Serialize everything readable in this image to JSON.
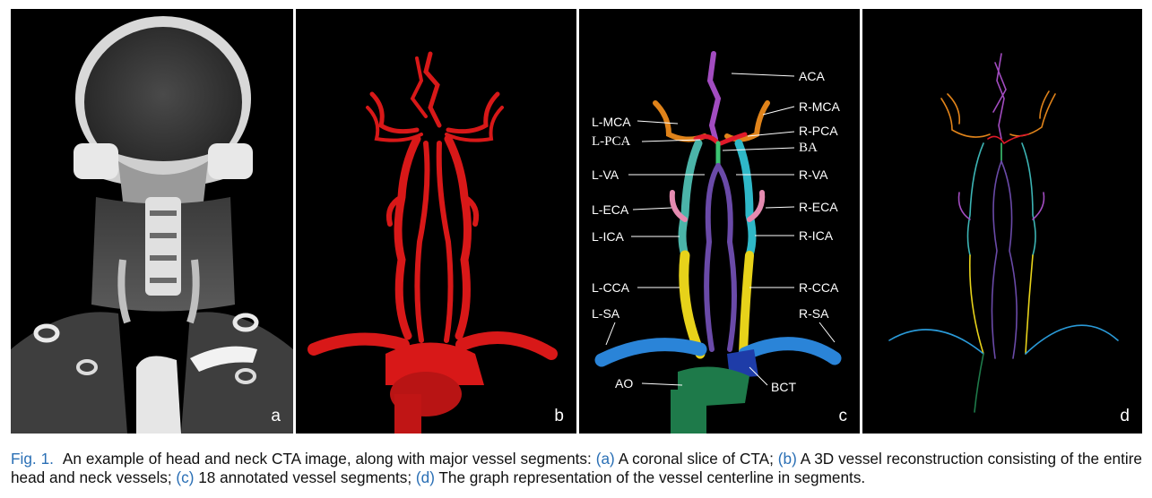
{
  "figure": {
    "panels": [
      {
        "id": "a",
        "letter": "a"
      },
      {
        "id": "b",
        "letter": "b"
      },
      {
        "id": "c",
        "letter": "c"
      },
      {
        "id": "d",
        "letter": "d"
      }
    ],
    "vessel_labels": {
      "ACA": "ACA",
      "L-MCA": "L-MCA",
      "R-MCA": "R-MCA",
      "L-PCA": "L-PCA",
      "R-PCA": "R-PCA",
      "BA": "BA",
      "L-VA": "L-VA",
      "R-VA": "R-VA",
      "L-ECA": "L-ECA",
      "R-ECA": "R-ECA",
      "L-ICA": "L-ICA",
      "R-ICA": "R-ICA",
      "L-CCA": "L-CCA",
      "R-CCA": "R-CCA",
      "L-SA": "L-SA",
      "R-SA": "R-SA",
      "AO": "AO",
      "BCT": "BCT"
    },
    "colors": {
      "vessel_red": "#d81818",
      "aca_purple": "#a24cc0",
      "mca_orange": "#e0831a",
      "pca_red": "#e01a2a",
      "ba_green": "#3cc472",
      "va_purple": "#6a4aa8",
      "ica_teal": "#4bb4a8",
      "cca_yellow": "#e7d21a",
      "sa_blue": "#2a84d8",
      "ao_green": "#1e7a4a",
      "bct_navy": "#1e3ca8",
      "eca_pink": "#e58ab0",
      "caption_link": "#2a6fb5"
    }
  },
  "caption": {
    "prefix": "Fig. 1.",
    "t1": "An example of head and neck CTA image, along with major vessel segments: ",
    "a": "(a)",
    "t2": " A coronal slice of CTA; ",
    "b": "(b)",
    "t3": " A 3D vessel reconstruction consisting of the entire head and neck vessels; ",
    "c": "(c)",
    "t4": " 18 annotated vessel segments; ",
    "d": "(d)",
    "t5": " The graph representation of the vessel centerline in segments."
  }
}
